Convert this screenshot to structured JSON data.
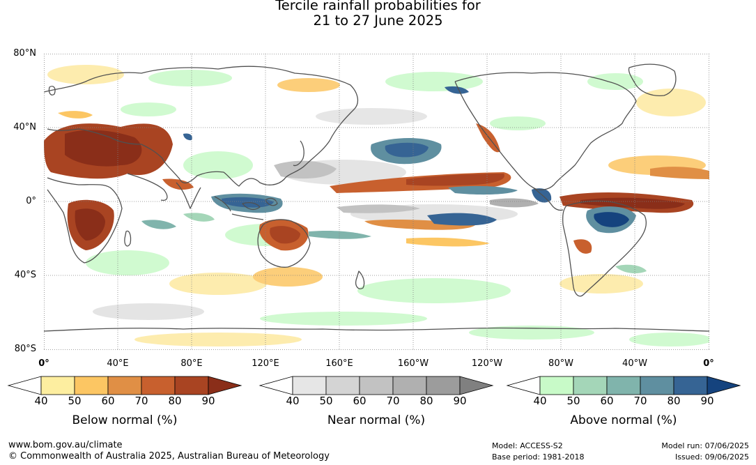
{
  "title": {
    "line1": "Tercile rainfall probabilities for",
    "line2": "21 to 27 June 2025"
  },
  "map": {
    "latitude_labels": [
      "80°N",
      "40°N",
      "0°",
      "40°S",
      "80°S"
    ],
    "longitude_labels": [
      "0°",
      "40°E",
      "80°E",
      "120°E",
      "160°E",
      "160°W",
      "120°W",
      "80°W",
      "40°W",
      "0°"
    ],
    "colors": {
      "ocean_background": "#ffffff",
      "coastline": "#505050",
      "gridline": "#808080"
    }
  },
  "legends": [
    {
      "title": "Below normal (%)",
      "ticks": [
        "40",
        "50",
        "60",
        "70",
        "80",
        "90"
      ],
      "colors": [
        "#ffffff",
        "#fdeea0",
        "#fcc663",
        "#e08f45",
        "#c8602e",
        "#a94422",
        "#8a2e19"
      ]
    },
    {
      "title": "Near normal (%)",
      "ticks": [
        "40",
        "50",
        "60",
        "70",
        "80",
        "90"
      ],
      "colors": [
        "#ffffff",
        "#e6e6e6",
        "#d4d4d4",
        "#c2c2c2",
        "#b0b0b0",
        "#9c9c9c",
        "#808080"
      ]
    },
    {
      "title": "Above normal (%)",
      "ticks": [
        "40",
        "50",
        "60",
        "70",
        "80",
        "90"
      ],
      "colors": [
        "#ffffff",
        "#c8fac8",
        "#a4d6b8",
        "#80b4ac",
        "#5f8fa0",
        "#366494",
        "#15437e"
      ]
    }
  ],
  "footer": {
    "website": "www.bom.gov.au/climate",
    "copyright": "© Commonwealth of Australia 2025, Australian Bureau of Meteorology",
    "model": "Model: ACCESS-S2",
    "base_period": "Base period: 1981-2018",
    "model_run": "Model run: 07/06/2025",
    "issued": "Issued: 09/06/2025"
  }
}
